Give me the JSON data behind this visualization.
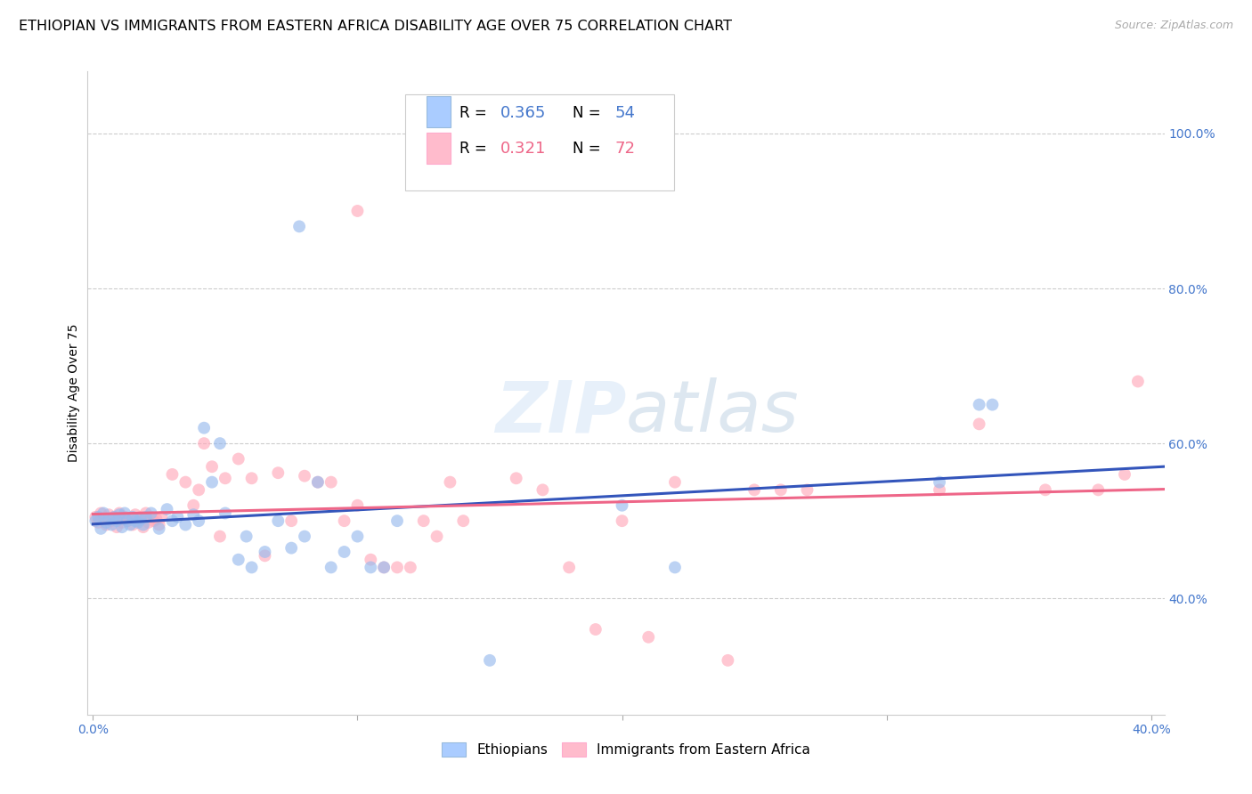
{
  "title": "ETHIOPIAN VS IMMIGRANTS FROM EASTERN AFRICA DISABILITY AGE OVER 75 CORRELATION CHART",
  "source": "Source: ZipAtlas.com",
  "ylabel": "Disability Age Over 75",
  "xlim": [
    -0.002,
    0.405
  ],
  "ylim": [
    0.25,
    1.08
  ],
  "xticks": [
    0.0,
    0.1,
    0.2,
    0.3,
    0.4
  ],
  "xticklabels": [
    "0.0%",
    "",
    "",
    "",
    "40.0%"
  ],
  "yticks_right": [
    0.4,
    0.6,
    0.8,
    1.0
  ],
  "yticklabels_right": [
    "40.0%",
    "60.0%",
    "80.0%",
    "100.0%"
  ],
  "blue_scatter_color": "#99BBEE",
  "pink_scatter_color": "#FFAABB",
  "blue_line_color": "#3355BB",
  "pink_line_color": "#EE6688",
  "blue_legend_fill": "#AACCFF",
  "pink_legend_fill": "#FFBBCC",
  "R_blue": 0.365,
  "N_blue": 54,
  "R_pink": 0.321,
  "N_pink": 72,
  "watermark": "ZIPatlas",
  "legend_label_blue": "Ethiopians",
  "legend_label_pink": "Immigrants from Eastern Africa",
  "background_color": "#ffffff",
  "grid_color": "#cccccc",
  "title_fontsize": 11.5,
  "axis_label_fontsize": 10,
  "tick_fontsize": 10,
  "legend_text_color_dark": "#222222",
  "right_tick_color": "#4477CC"
}
